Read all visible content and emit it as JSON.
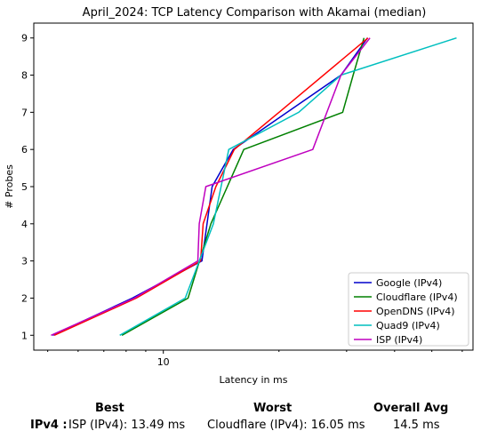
{
  "chart_data": {
    "type": "line",
    "title": "April_2024: TCP Latency Comparison with Akamai (median)",
    "xlabel": "Latency in ms",
    "ylabel": "# Probes",
    "xscale": "log",
    "xlim": [
      4.6,
      64
    ],
    "ylim": [
      0.6,
      9.4
    ],
    "x_tick_labels": [
      {
        "value": 10,
        "label": "10"
      }
    ],
    "y_ticks": [
      1,
      2,
      3,
      4,
      5,
      6,
      7,
      8,
      9
    ],
    "legend_position": "lower-right",
    "grid": false,
    "series": [
      {
        "name": "Google (IPv4)",
        "color": "#0000cc",
        "x": [
          5.15,
          8.3,
          12.6,
          13.4,
          15.2,
          29.0,
          34.0
        ],
        "y": [
          1,
          2,
          3,
          5,
          6,
          8,
          9
        ]
      },
      {
        "name": "Cloudflare (IPv4)",
        "color": "#008000",
        "x": [
          7.8,
          11.6,
          13.3,
          16.2,
          29.3,
          31.2,
          33.3
        ],
        "y": [
          1,
          2,
          4,
          6,
          7,
          8,
          9
        ]
      },
      {
        "name": "OpenDNS (IPv4)",
        "color": "#ff0000",
        "x": [
          5.2,
          8.5,
          12.5,
          12.7,
          13.7,
          15.3,
          20.0,
          34.1
        ],
        "y": [
          1,
          2,
          3,
          4,
          5,
          6,
          7,
          9
        ]
      },
      {
        "name": "Quad9 (IPv4)",
        "color": "#00bfbf",
        "x": [
          7.7,
          11.4,
          13.5,
          14.8,
          22.5,
          29.0,
          58.0
        ],
        "y": [
          1,
          2,
          4,
          6,
          7,
          8,
          9
        ]
      },
      {
        "name": "ISP (IPv4)",
        "color": "#bf00bf",
        "x": [
          5.1,
          8.4,
          12.3,
          12.4,
          12.9,
          24.5,
          29.0,
          34.5
        ],
        "y": [
          1,
          2,
          3,
          4,
          5,
          6,
          8,
          9
        ]
      }
    ]
  },
  "summary": {
    "best_header": "Best",
    "worst_header": "Worst",
    "avg_header": "Overall Avg",
    "row_label": "IPv4 :",
    "best_value": "ISP (IPv4): 13.49 ms",
    "worst_value": "Cloudflare (IPv4): 16.05 ms",
    "avg_value": "14.5 ms"
  }
}
